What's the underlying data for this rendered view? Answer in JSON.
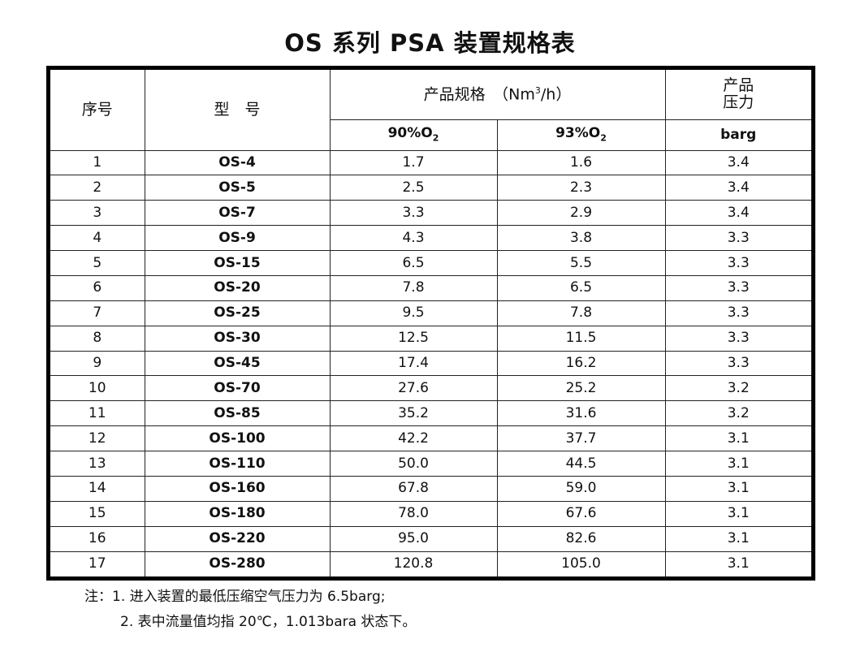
{
  "title": "OS 系列 PSA 装置规格表",
  "header": {
    "seq": "序号",
    "model": "型　号",
    "spec_prefix": "产品规格　（Nm",
    "spec_sup": "3",
    "spec_suffix": "/h）",
    "pressure_line1": "产品",
    "pressure_line2": "压力",
    "col90_main": "90%O",
    "col90_sub": "2",
    "col93_main": "93%O",
    "col93_sub": "2",
    "unit": "barg"
  },
  "rows": [
    {
      "seq": "1",
      "model": "OS-4",
      "v90": "1.7",
      "v93": "1.6",
      "p": "3.4"
    },
    {
      "seq": "2",
      "model": "OS-5",
      "v90": "2.5",
      "v93": "2.3",
      "p": "3.4"
    },
    {
      "seq": "3",
      "model": "OS-7",
      "v90": "3.3",
      "v93": "2.9",
      "p": "3.4"
    },
    {
      "seq": "4",
      "model": "OS-9",
      "v90": "4.3",
      "v93": "3.8",
      "p": "3.3"
    },
    {
      "seq": "5",
      "model": "OS-15",
      "v90": "6.5",
      "v93": "5.5",
      "p": "3.3"
    },
    {
      "seq": "6",
      "model": "OS-20",
      "v90": "7.8",
      "v93": "6.5",
      "p": "3.3"
    },
    {
      "seq": "7",
      "model": "OS-25",
      "v90": "9.5",
      "v93": "7.8",
      "p": "3.3"
    },
    {
      "seq": "8",
      "model": "OS-30",
      "v90": "12.5",
      "v93": "11.5",
      "p": "3.3"
    },
    {
      "seq": "9",
      "model": "OS-45",
      "v90": "17.4",
      "v93": "16.2",
      "p": "3.3"
    },
    {
      "seq": "10",
      "model": "OS-70",
      "v90": "27.6",
      "v93": "25.2",
      "p": "3.2"
    },
    {
      "seq": "11",
      "model": "OS-85",
      "v90": "35.2",
      "v93": "31.6",
      "p": "3.2"
    },
    {
      "seq": "12",
      "model": "OS-100",
      "v90": "42.2",
      "v93": "37.7",
      "p": "3.1"
    },
    {
      "seq": "13",
      "model": "OS-110",
      "v90": "50.0",
      "v93": "44.5",
      "p": "3.1"
    },
    {
      "seq": "14",
      "model": "OS-160",
      "v90": "67.8",
      "v93": "59.0",
      "p": "3.1"
    },
    {
      "seq": "15",
      "model": "OS-180",
      "v90": "78.0",
      "v93": "67.6",
      "p": "3.1"
    },
    {
      "seq": "16",
      "model": "OS-220",
      "v90": "95.0",
      "v93": "82.6",
      "p": "3.1"
    },
    {
      "seq": "17",
      "model": "OS-280",
      "v90": "120.8",
      "v93": "105.0",
      "p": "3.1"
    }
  ],
  "notes": {
    "line1": "注：1. 进入装置的最低压缩空气压力为 6.5barg;",
    "line2": "2. 表中流量值均指 20℃，1.013bara 状态下。"
  }
}
